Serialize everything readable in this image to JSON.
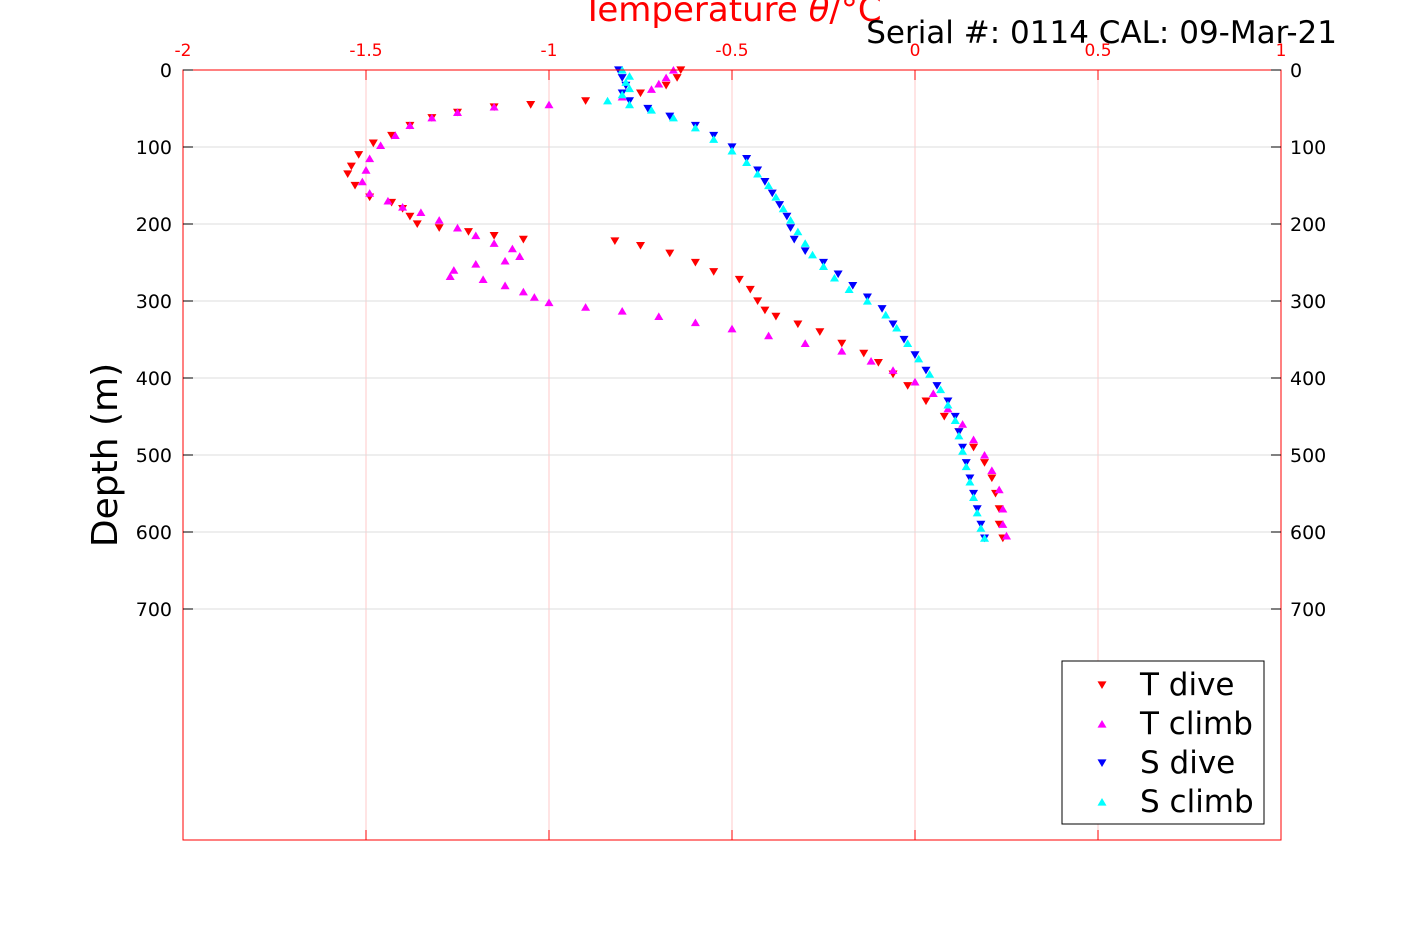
{
  "serial_label": "Serial #: 0114  CAL: 09-Mar-21",
  "colors": {
    "T dive": "#ff0000",
    "T climb": "#ff00ff",
    "S dive": "#0000ff",
    "S climb": "#00ffff",
    "axis": "#ff0000",
    "grid_x": "#ffc8c8",
    "grid_y": "#dcdcdc"
  },
  "chart_data": {
    "type": "scatter",
    "title_prefix": "Temperature ",
    "title_symbol": "θ",
    "title_suffix": "/°C",
    "xlabel": "",
    "ylabel": "Depth (m)",
    "xlim": [
      -2,
      1
    ],
    "ylim": [
      0,
      1000
    ],
    "y_reversed": true,
    "x_axis_position": "top",
    "x_ticks": [
      -2,
      -1.5,
      -1,
      -0.5,
      0,
      0.5,
      1
    ],
    "x_tick_labels": [
      "-2",
      "-1.5",
      "-1",
      "-0.5",
      "0",
      "0.5",
      "1"
    ],
    "y_ticks": [
      0,
      100,
      200,
      300,
      400,
      500,
      600,
      700
    ],
    "y_tick_labels": [
      "0",
      "100",
      "200",
      "300",
      "400",
      "500",
      "600",
      "700"
    ],
    "grid": true,
    "legend_position": "bottom-right",
    "series": [
      {
        "name": "T dive",
        "marker": "triangle-down",
        "points": [
          [
            -0.64,
            0
          ],
          [
            -0.65,
            10
          ],
          [
            -0.68,
            20
          ],
          [
            -0.75,
            30
          ],
          [
            -0.9,
            40
          ],
          [
            -1.05,
            45
          ],
          [
            -1.15,
            48
          ],
          [
            -1.25,
            55
          ],
          [
            -1.32,
            62
          ],
          [
            -1.38,
            72
          ],
          [
            -1.43,
            85
          ],
          [
            -1.48,
            95
          ],
          [
            -1.52,
            110
          ],
          [
            -1.54,
            125
          ],
          [
            -1.55,
            135
          ],
          [
            -1.53,
            150
          ],
          [
            -1.49,
            165
          ],
          [
            -1.43,
            172
          ],
          [
            -1.4,
            180
          ],
          [
            -1.38,
            190
          ],
          [
            -1.36,
            200
          ],
          [
            -1.3,
            205
          ],
          [
            -1.22,
            210
          ],
          [
            -1.15,
            215
          ],
          [
            -1.07,
            220
          ],
          [
            -0.82,
            222
          ],
          [
            -0.75,
            228
          ],
          [
            -0.67,
            238
          ],
          [
            -0.6,
            250
          ],
          [
            -0.55,
            262
          ],
          [
            -0.48,
            272
          ],
          [
            -0.45,
            285
          ],
          [
            -0.43,
            300
          ],
          [
            -0.41,
            312
          ],
          [
            -0.38,
            320
          ],
          [
            -0.32,
            330
          ],
          [
            -0.26,
            340
          ],
          [
            -0.2,
            355
          ],
          [
            -0.14,
            368
          ],
          [
            -0.1,
            380
          ],
          [
            -0.06,
            395
          ],
          [
            -0.02,
            410
          ],
          [
            0.03,
            430
          ],
          [
            0.08,
            450
          ],
          [
            0.12,
            470
          ],
          [
            0.16,
            490
          ],
          [
            0.19,
            510
          ],
          [
            0.21,
            530
          ],
          [
            0.22,
            550
          ],
          [
            0.23,
            570
          ],
          [
            0.23,
            590
          ],
          [
            0.24,
            608
          ]
        ]
      },
      {
        "name": "T climb",
        "marker": "triangle-up",
        "points": [
          [
            -0.66,
            0
          ],
          [
            -0.68,
            10
          ],
          [
            -0.7,
            18
          ],
          [
            -0.72,
            25
          ],
          [
            -0.8,
            35
          ],
          [
            -1.0,
            45
          ],
          [
            -1.15,
            48
          ],
          [
            -1.25,
            55
          ],
          [
            -1.32,
            62
          ],
          [
            -1.38,
            72
          ],
          [
            -1.42,
            85
          ],
          [
            -1.46,
            98
          ],
          [
            -1.49,
            115
          ],
          [
            -1.5,
            130
          ],
          [
            -1.51,
            145
          ],
          [
            -1.49,
            160
          ],
          [
            -1.44,
            170
          ],
          [
            -1.4,
            178
          ],
          [
            -1.35,
            185
          ],
          [
            -1.3,
            195
          ],
          [
            -1.25,
            205
          ],
          [
            -1.2,
            215
          ],
          [
            -1.15,
            225
          ],
          [
            -1.1,
            232
          ],
          [
            -1.08,
            242
          ],
          [
            -1.12,
            248
          ],
          [
            -1.2,
            252
          ],
          [
            -1.26,
            260
          ],
          [
            -1.27,
            268
          ],
          [
            -1.18,
            272
          ],
          [
            -1.12,
            280
          ],
          [
            -1.07,
            288
          ],
          [
            -1.04,
            295
          ],
          [
            -1.0,
            302
          ],
          [
            -0.9,
            308
          ],
          [
            -0.8,
            313
          ],
          [
            -0.7,
            320
          ],
          [
            -0.6,
            328
          ],
          [
            -0.5,
            336
          ],
          [
            -0.4,
            345
          ],
          [
            -0.3,
            355
          ],
          [
            -0.2,
            365
          ],
          [
            -0.12,
            378
          ],
          [
            -0.06,
            390
          ],
          [
            0.0,
            405
          ],
          [
            0.05,
            420
          ],
          [
            0.09,
            440
          ],
          [
            0.13,
            460
          ],
          [
            0.16,
            480
          ],
          [
            0.19,
            500
          ],
          [
            0.21,
            520
          ],
          [
            0.23,
            545
          ],
          [
            0.24,
            570
          ],
          [
            0.24,
            590
          ],
          [
            0.25,
            605
          ]
        ]
      },
      {
        "name": "S dive",
        "marker": "triangle-down",
        "points": [
          [
            -0.81,
            0
          ],
          [
            -0.8,
            10
          ],
          [
            -0.79,
            20
          ],
          [
            -0.8,
            30
          ],
          [
            -0.78,
            40
          ],
          [
            -0.73,
            50
          ],
          [
            -0.67,
            60
          ],
          [
            -0.6,
            72
          ],
          [
            -0.55,
            85
          ],
          [
            -0.5,
            100
          ],
          [
            -0.46,
            115
          ],
          [
            -0.43,
            130
          ],
          [
            -0.41,
            145
          ],
          [
            -0.39,
            160
          ],
          [
            -0.37,
            175
          ],
          [
            -0.35,
            190
          ],
          [
            -0.34,
            205
          ],
          [
            -0.33,
            220
          ],
          [
            -0.3,
            235
          ],
          [
            -0.25,
            250
          ],
          [
            -0.21,
            265
          ],
          [
            -0.17,
            280
          ],
          [
            -0.13,
            295
          ],
          [
            -0.09,
            310
          ],
          [
            -0.06,
            330
          ],
          [
            -0.03,
            350
          ],
          [
            0.0,
            370
          ],
          [
            0.03,
            390
          ],
          [
            0.06,
            410
          ],
          [
            0.09,
            430
          ],
          [
            0.11,
            450
          ],
          [
            0.12,
            470
          ],
          [
            0.13,
            490
          ],
          [
            0.14,
            510
          ],
          [
            0.15,
            530
          ],
          [
            0.16,
            550
          ],
          [
            0.17,
            570
          ],
          [
            0.18,
            590
          ],
          [
            0.19,
            608
          ]
        ]
      },
      {
        "name": "S climb",
        "marker": "triangle-up",
        "points": [
          [
            -0.8,
            0
          ],
          [
            -0.78,
            8
          ],
          [
            -0.79,
            16
          ],
          [
            -0.78,
            24
          ],
          [
            -0.8,
            32
          ],
          [
            -0.84,
            40
          ],
          [
            -0.78,
            45
          ],
          [
            -0.72,
            52
          ],
          [
            -0.66,
            62
          ],
          [
            -0.6,
            75
          ],
          [
            -0.55,
            90
          ],
          [
            -0.5,
            105
          ],
          [
            -0.46,
            120
          ],
          [
            -0.43,
            135
          ],
          [
            -0.4,
            150
          ],
          [
            -0.38,
            165
          ],
          [
            -0.36,
            180
          ],
          [
            -0.34,
            195
          ],
          [
            -0.32,
            210
          ],
          [
            -0.3,
            225
          ],
          [
            -0.28,
            240
          ],
          [
            -0.25,
            255
          ],
          [
            -0.22,
            270
          ],
          [
            -0.18,
            285
          ],
          [
            -0.13,
            300
          ],
          [
            -0.08,
            318
          ],
          [
            -0.05,
            335
          ],
          [
            -0.02,
            355
          ],
          [
            0.01,
            375
          ],
          [
            0.04,
            395
          ],
          [
            0.07,
            415
          ],
          [
            0.09,
            435
          ],
          [
            0.11,
            455
          ],
          [
            0.12,
            475
          ],
          [
            0.13,
            495
          ],
          [
            0.14,
            515
          ],
          [
            0.15,
            535
          ],
          [
            0.16,
            555
          ],
          [
            0.17,
            575
          ],
          [
            0.18,
            595
          ],
          [
            0.19,
            608
          ]
        ]
      }
    ]
  }
}
